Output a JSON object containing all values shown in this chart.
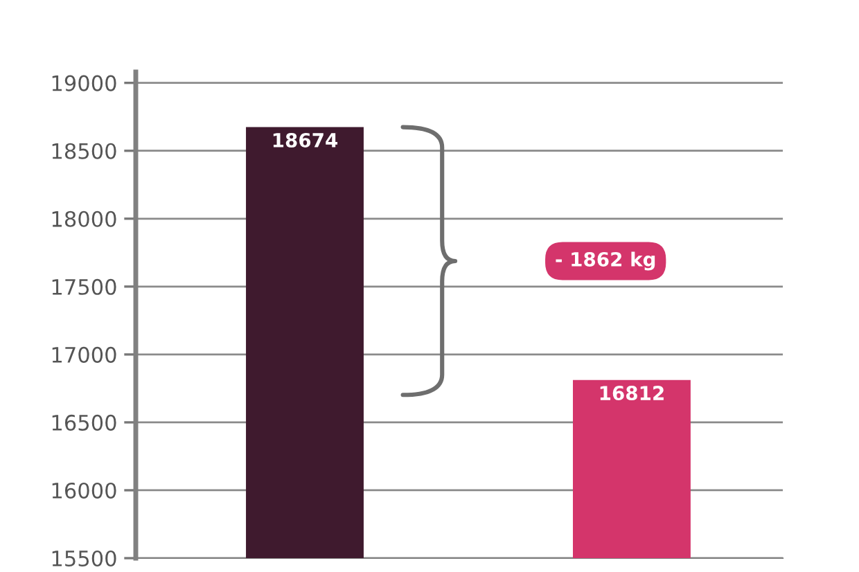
{
  "chart_data": {
    "type": "bar",
    "categories": [
      null,
      null
    ],
    "values": [
      18674,
      16812
    ],
    "colors": [
      "#3f1a2e",
      "#d4356b"
    ],
    "ylim": [
      15500,
      19080
    ],
    "yticks": [
      15500,
      16000,
      16500,
      17000,
      17500,
      18000,
      18500,
      19000
    ],
    "grid": "y",
    "data_labels": true,
    "legend": false,
    "annotations": [
      "- 1862 kg"
    ]
  }
}
